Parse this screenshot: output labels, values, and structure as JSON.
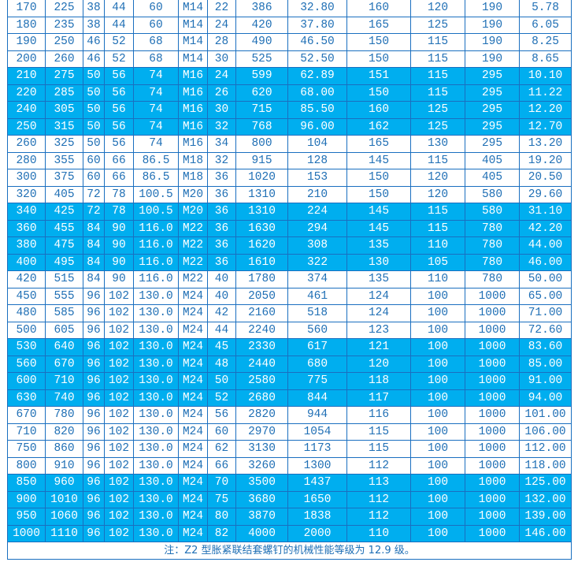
{
  "table": {
    "rows": [
      {
        "cells": [
          "170",
          "225",
          "38",
          "44",
          "60",
          "M14",
          "22",
          "386",
          "32.80",
          "160",
          "120",
          "190",
          "5.78"
        ],
        "highlight": false
      },
      {
        "cells": [
          "180",
          "235",
          "38",
          "44",
          "60",
          "M14",
          "24",
          "420",
          "37.80",
          "165",
          "125",
          "190",
          "6.05"
        ],
        "highlight": false
      },
      {
        "cells": [
          "190",
          "250",
          "46",
          "52",
          "68",
          "M14",
          "28",
          "490",
          "46.50",
          "150",
          "115",
          "190",
          "8.25"
        ],
        "highlight": false
      },
      {
        "cells": [
          "200",
          "260",
          "46",
          "52",
          "68",
          "M14",
          "30",
          "525",
          "52.50",
          "150",
          "115",
          "190",
          "8.65"
        ],
        "highlight": false
      },
      {
        "cells": [
          "210",
          "275",
          "50",
          "56",
          "74",
          "M16",
          "24",
          "599",
          "62.89",
          "151",
          "115",
          "295",
          "10.10"
        ],
        "highlight": true
      },
      {
        "cells": [
          "220",
          "285",
          "50",
          "56",
          "74",
          "M16",
          "26",
          "620",
          "68.00",
          "150",
          "115",
          "295",
          "11.22"
        ],
        "highlight": true
      },
      {
        "cells": [
          "240",
          "305",
          "50",
          "56",
          "74",
          "M16",
          "30",
          "715",
          "85.50",
          "160",
          "125",
          "295",
          "12.20"
        ],
        "highlight": true
      },
      {
        "cells": [
          "250",
          "315",
          "50",
          "56",
          "74",
          "M16",
          "32",
          "768",
          "96.00",
          "162",
          "125",
          "295",
          "12.70"
        ],
        "highlight": true
      },
      {
        "cells": [
          "260",
          "325",
          "50",
          "56",
          "74",
          "M16",
          "34",
          "800",
          "104",
          "165",
          "130",
          "295",
          "13.20"
        ],
        "highlight": false
      },
      {
        "cells": [
          "280",
          "355",
          "60",
          "66",
          "86.5",
          "M18",
          "32",
          "915",
          "128",
          "145",
          "115",
          "405",
          "19.20"
        ],
        "highlight": false
      },
      {
        "cells": [
          "300",
          "375",
          "60",
          "66",
          "86.5",
          "M18",
          "36",
          "1020",
          "153",
          "150",
          "120",
          "405",
          "20.50"
        ],
        "highlight": false
      },
      {
        "cells": [
          "320",
          "405",
          "72",
          "78",
          "100.5",
          "M20",
          "36",
          "1310",
          "210",
          "150",
          "120",
          "580",
          "29.60"
        ],
        "highlight": false
      },
      {
        "cells": [
          "340",
          "425",
          "72",
          "78",
          "100.5",
          "M20",
          "36",
          "1310",
          "224",
          "145",
          "115",
          "580",
          "31.10"
        ],
        "highlight": true
      },
      {
        "cells": [
          "360",
          "455",
          "84",
          "90",
          "116.0",
          "M22",
          "36",
          "1630",
          "294",
          "145",
          "115",
          "780",
          "42.20"
        ],
        "highlight": true
      },
      {
        "cells": [
          "380",
          "475",
          "84",
          "90",
          "116.0",
          "M22",
          "36",
          "1620",
          "308",
          "135",
          "110",
          "780",
          "44.00"
        ],
        "highlight": true
      },
      {
        "cells": [
          "400",
          "495",
          "84",
          "90",
          "116.0",
          "M22",
          "36",
          "1610",
          "322",
          "130",
          "105",
          "780",
          "46.00"
        ],
        "highlight": true
      },
      {
        "cells": [
          "420",
          "515",
          "84",
          "90",
          "116.0",
          "M22",
          "40",
          "1780",
          "374",
          "135",
          "110",
          "780",
          "50.00"
        ],
        "highlight": false
      },
      {
        "cells": [
          "450",
          "555",
          "96",
          "102",
          "130.0",
          "M24",
          "40",
          "2050",
          "461",
          "124",
          "100",
          "1000",
          "65.00"
        ],
        "highlight": false
      },
      {
        "cells": [
          "480",
          "585",
          "96",
          "102",
          "130.0",
          "M24",
          "42",
          "2160",
          "518",
          "124",
          "100",
          "1000",
          "71.00"
        ],
        "highlight": false
      },
      {
        "cells": [
          "500",
          "605",
          "96",
          "102",
          "130.0",
          "M24",
          "44",
          "2240",
          "560",
          "123",
          "100",
          "1000",
          "72.60"
        ],
        "highlight": false
      },
      {
        "cells": [
          "530",
          "640",
          "96",
          "102",
          "130.0",
          "M24",
          "45",
          "2330",
          "617",
          "121",
          "100",
          "1000",
          "83.60"
        ],
        "highlight": true
      },
      {
        "cells": [
          "560",
          "670",
          "96",
          "102",
          "130.0",
          "M24",
          "48",
          "2440",
          "680",
          "120",
          "100",
          "1000",
          "85.00"
        ],
        "highlight": true
      },
      {
        "cells": [
          "600",
          "710",
          "96",
          "102",
          "130.0",
          "M24",
          "50",
          "2580",
          "775",
          "118",
          "100",
          "1000",
          "91.00"
        ],
        "highlight": true
      },
      {
        "cells": [
          "630",
          "740",
          "96",
          "102",
          "130.0",
          "M24",
          "52",
          "2680",
          "844",
          "117",
          "100",
          "1000",
          "94.00"
        ],
        "highlight": true
      },
      {
        "cells": [
          "670",
          "780",
          "96",
          "102",
          "130.0",
          "M24",
          "56",
          "2820",
          "944",
          "116",
          "100",
          "1000",
          "101.00"
        ],
        "highlight": false
      },
      {
        "cells": [
          "710",
          "820",
          "96",
          "102",
          "130.0",
          "M24",
          "60",
          "2970",
          "1054",
          "115",
          "100",
          "1000",
          "106.00"
        ],
        "highlight": false
      },
      {
        "cells": [
          "750",
          "860",
          "96",
          "102",
          "130.0",
          "M24",
          "62",
          "3130",
          "1173",
          "115",
          "100",
          "1000",
          "112.00"
        ],
        "highlight": false
      },
      {
        "cells": [
          "800",
          "910",
          "96",
          "102",
          "130.0",
          "M24",
          "66",
          "3260",
          "1300",
          "112",
          "100",
          "1000",
          "118.00"
        ],
        "highlight": false
      },
      {
        "cells": [
          "850",
          "960",
          "96",
          "102",
          "130.0",
          "M24",
          "70",
          "3500",
          "1437",
          "113",
          "100",
          "1000",
          "125.00"
        ],
        "highlight": true
      },
      {
        "cells": [
          "900",
          "1010",
          "96",
          "102",
          "130.0",
          "M24",
          "75",
          "3680",
          "1650",
          "112",
          "100",
          "1000",
          "132.00"
        ],
        "highlight": true
      },
      {
        "cells": [
          "950",
          "1060",
          "96",
          "102",
          "130.0",
          "M24",
          "80",
          "3870",
          "1838",
          "112",
          "100",
          "1000",
          "139.00"
        ],
        "highlight": true
      },
      {
        "cells": [
          "1000",
          "1110",
          "96",
          "102",
          "130.0",
          "M24",
          "82",
          "4000",
          "2000",
          "110",
          "100",
          "1000",
          "146.00"
        ],
        "highlight": true
      }
    ],
    "note": "注：Z2 型胀紧联结套螺钉的机械性能等级为 12.9 级。"
  },
  "colors": {
    "highlight": "#00aeef",
    "text": "#1f6fb5",
    "border": "#1a6fc0"
  }
}
